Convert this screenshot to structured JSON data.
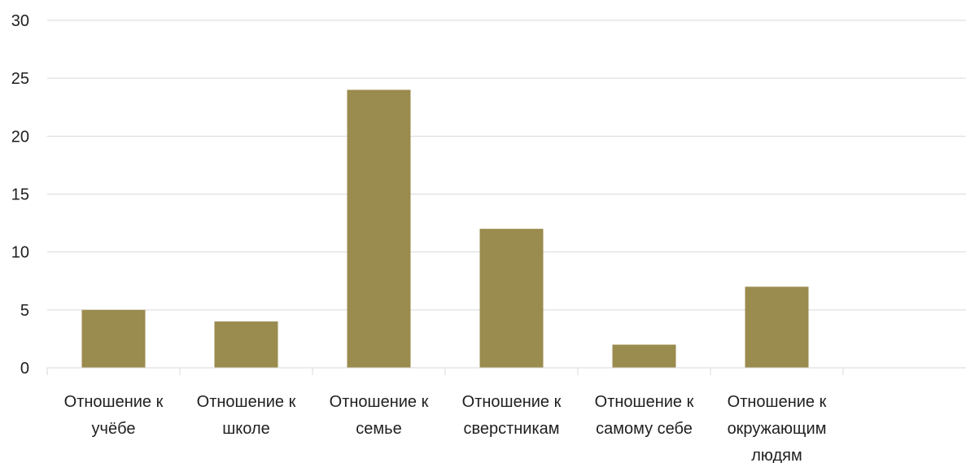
{
  "chart_data": {
    "type": "bar",
    "categories": [
      "Отношение к учёбе",
      "Отношение к школе",
      "Отношение к семье",
      "Отношение к сверстникам",
      "Отношение к самому себе",
      "Отношение к окружающим людям"
    ],
    "category_lines": [
      [
        "Отношение к",
        "учёбе"
      ],
      [
        "Отношение к",
        "школе"
      ],
      [
        "Отношение к",
        "семье"
      ],
      [
        "Отношение к",
        "сверстникам"
      ],
      [
        "Отношение к",
        "самому себе"
      ],
      [
        "Отношение к",
        "окружающим",
        "людям"
      ]
    ],
    "values": [
      5,
      4,
      24,
      12,
      2,
      7
    ],
    "yticks": [
      0,
      5,
      10,
      15,
      20,
      25,
      30
    ],
    "ylim": [
      0,
      30
    ],
    "grid": true,
    "legend": "none",
    "title": "",
    "xlabel": "",
    "ylabel": "",
    "bar_color": "#9a8b4e",
    "grid_color": "#d9d9d9"
  }
}
